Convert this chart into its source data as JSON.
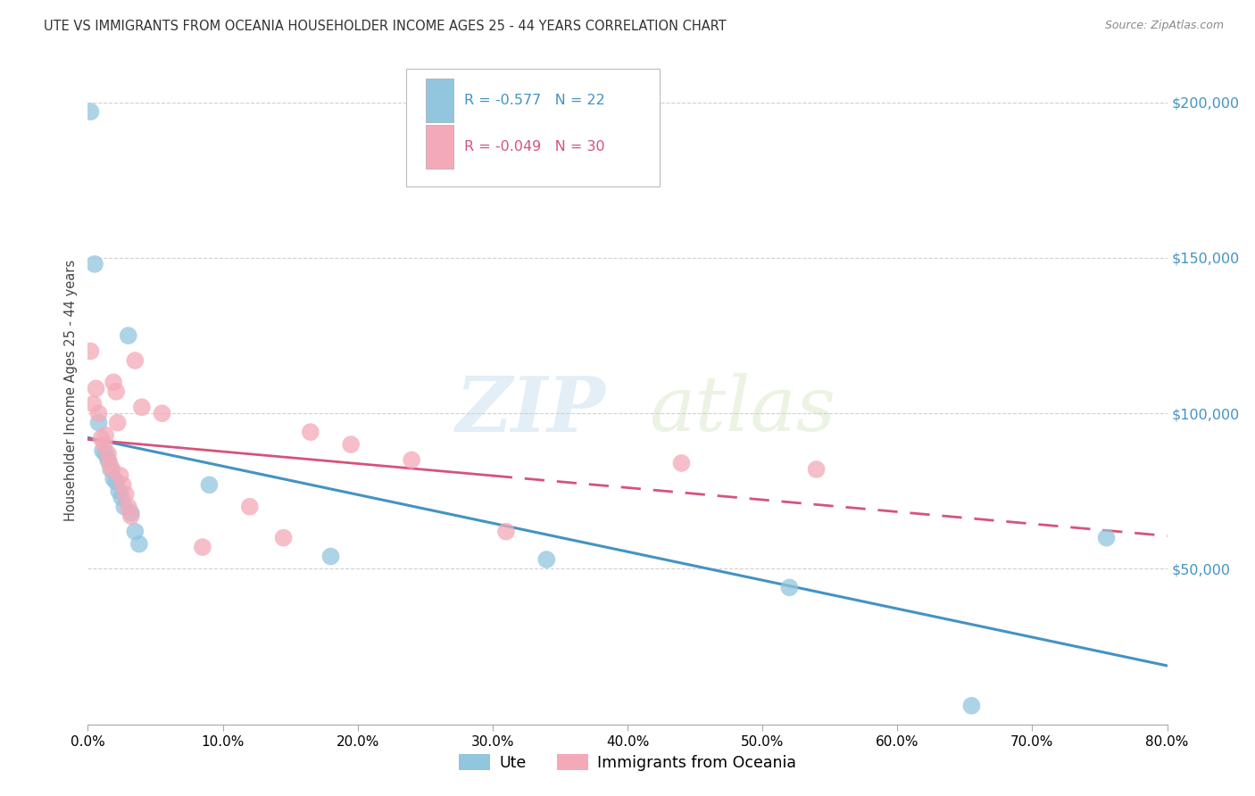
{
  "title": "UTE VS IMMIGRANTS FROM OCEANIA HOUSEHOLDER INCOME AGES 25 - 44 YEARS CORRELATION CHART",
  "source": "Source: ZipAtlas.com",
  "ylabel": "Householder Income Ages 25 - 44 years",
  "y_ticks": [
    0,
    50000,
    100000,
    150000,
    200000
  ],
  "y_tick_labels": [
    "",
    "$50,000",
    "$100,000",
    "$150,000",
    "$200,000"
  ],
  "legend_blue_r": "-0.577",
  "legend_blue_n": "22",
  "legend_pink_r": "-0.049",
  "legend_pink_n": "30",
  "legend_label_blue": "Ute",
  "legend_label_pink": "Immigrants from Oceania",
  "blue_color": "#92c5de",
  "pink_color": "#f4a9b8",
  "blue_line_color": "#4393c3",
  "pink_line_color": "#d6537a",
  "ute_x": [
    0.002,
    0.005,
    0.008,
    0.011,
    0.013,
    0.015,
    0.017,
    0.019,
    0.021,
    0.023,
    0.025,
    0.027,
    0.03,
    0.032,
    0.035,
    0.038,
    0.09,
    0.18,
    0.34,
    0.52,
    0.655,
    0.755
  ],
  "ute_y": [
    197000,
    148000,
    97000,
    88000,
    87000,
    85000,
    82000,
    79000,
    78000,
    75000,
    73000,
    70000,
    125000,
    68000,
    62000,
    58000,
    77000,
    54000,
    53000,
    44000,
    6000,
    60000
  ],
  "oceania_x": [
    0.002,
    0.004,
    0.006,
    0.008,
    0.01,
    0.012,
    0.013,
    0.015,
    0.016,
    0.018,
    0.019,
    0.021,
    0.022,
    0.024,
    0.026,
    0.028,
    0.03,
    0.032,
    0.035,
    0.04,
    0.055,
    0.085,
    0.12,
    0.145,
    0.165,
    0.195,
    0.24,
    0.31,
    0.44,
    0.54
  ],
  "oceania_y": [
    120000,
    103000,
    108000,
    100000,
    92000,
    90000,
    93000,
    87000,
    84000,
    82000,
    110000,
    107000,
    97000,
    80000,
    77000,
    74000,
    70000,
    67000,
    117000,
    102000,
    100000,
    57000,
    70000,
    60000,
    94000,
    90000,
    85000,
    62000,
    84000,
    82000
  ],
  "xlim": [
    0.0,
    0.8
  ],
  "ylim": [
    0,
    215000
  ],
  "background_color": "#ffffff",
  "grid_color": "#d0d0d0",
  "watermark_zip": "ZIP",
  "watermark_atlas": "atlas",
  "title_fontsize": 10.5,
  "axis_label_fontsize": 10
}
